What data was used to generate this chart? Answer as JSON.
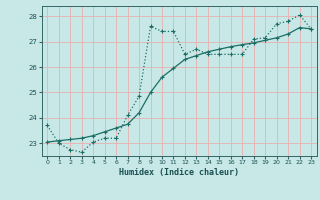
{
  "xlabel": "Humidex (Indice chaleur)",
  "bg_color": "#c8e8e8",
  "grid_color": "#e8b0b0",
  "line_color": "#1a6e64",
  "xlim": [
    -0.5,
    23.5
  ],
  "ylim": [
    22.5,
    28.4
  ],
  "yticks": [
    23,
    24,
    25,
    26,
    27,
    28
  ],
  "xticks": [
    0,
    1,
    2,
    3,
    4,
    5,
    6,
    7,
    8,
    9,
    10,
    11,
    12,
    13,
    14,
    15,
    16,
    17,
    18,
    19,
    20,
    21,
    22,
    23
  ],
  "line1_x": [
    0,
    1,
    2,
    3,
    4,
    5,
    6,
    7,
    8,
    9,
    10,
    11,
    12,
    13,
    14,
    15,
    16,
    17,
    18,
    19,
    20,
    21,
    22,
    23
  ],
  "line1_y": [
    23.7,
    23.0,
    22.75,
    22.65,
    23.05,
    23.2,
    23.2,
    24.1,
    24.85,
    27.6,
    27.4,
    27.4,
    26.5,
    26.7,
    26.5,
    26.5,
    26.5,
    26.5,
    27.1,
    27.15,
    27.7,
    27.8,
    28.05,
    27.5
  ],
  "line2_x": [
    0,
    1,
    2,
    3,
    4,
    5,
    6,
    7,
    8,
    9,
    10,
    11,
    12,
    13,
    14,
    15,
    16,
    17,
    18,
    19,
    20,
    21,
    22,
    23
  ],
  "line2_y": [
    23.05,
    23.1,
    23.15,
    23.2,
    23.3,
    23.45,
    23.6,
    23.75,
    24.2,
    25.0,
    25.6,
    25.95,
    26.3,
    26.45,
    26.6,
    26.7,
    26.8,
    26.88,
    26.95,
    27.05,
    27.15,
    27.3,
    27.55,
    27.5
  ]
}
